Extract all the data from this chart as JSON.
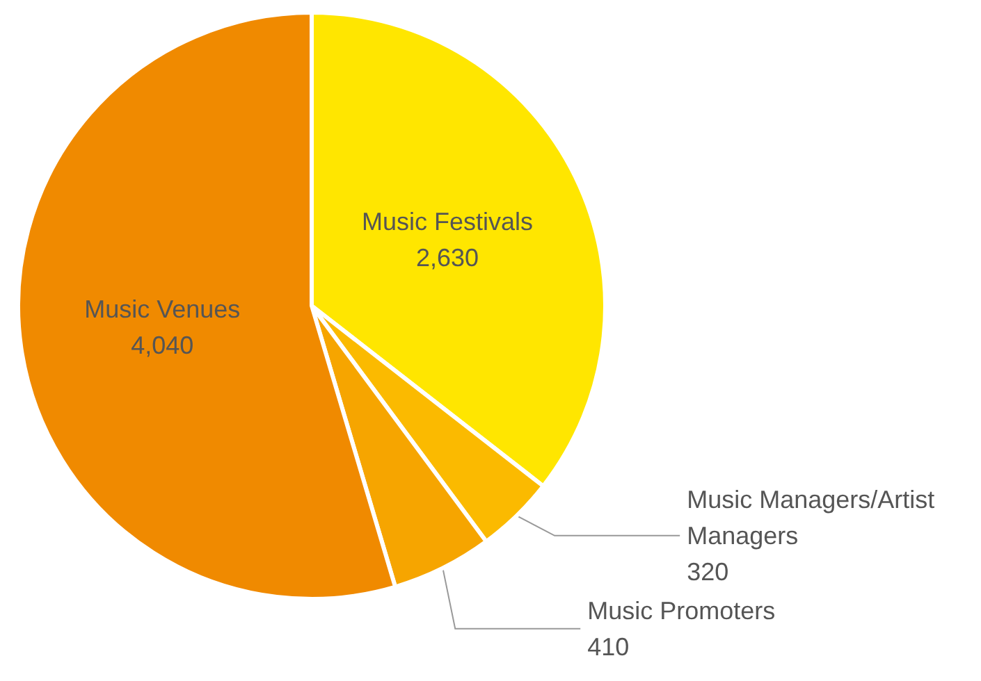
{
  "chart_data": {
    "type": "pie",
    "categories": [
      "Music Festivals",
      "Music Managers/Artist Managers",
      "Music Promoters",
      "Music Venues"
    ],
    "values": [
      2630,
      320,
      410,
      4040
    ],
    "colors": [
      "#ffe600",
      "#fbba00",
      "#f6a500",
      "#f08a00"
    ],
    "value_labels": [
      "2,630",
      "320",
      "410",
      "4,040"
    ],
    "legend": false
  }
}
